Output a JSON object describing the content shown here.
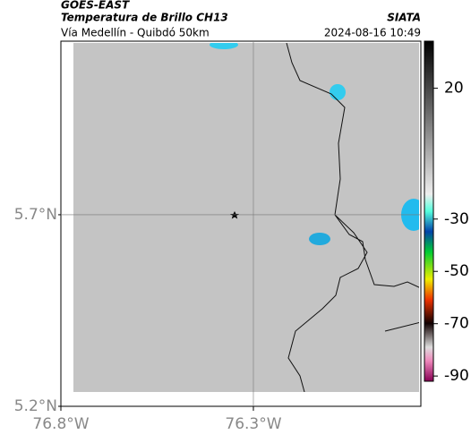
{
  "header": {
    "source": "GOES-EAST",
    "title": "Temperatura de Brillo CH13",
    "subtitle": "Vía Medellín - Quibdó 50km",
    "org": "SIATA",
    "datetime": "2024-08-16 10:49"
  },
  "chart_data": {
    "type": "map",
    "xlim": [
      -76.8,
      -75.865
    ],
    "xticks": [
      {
        "value": -76.8,
        "label": "76.8°W"
      },
      {
        "value": -76.3,
        "label": "76.3°W"
      }
    ],
    "ylim": [
      5.2,
      6.153
    ],
    "yticks": [
      {
        "value": 5.2,
        "label": "5.2°N"
      },
      {
        "value": 5.7,
        "label": "5.7°N"
      }
    ],
    "grid": true,
    "colorbar": {
      "lim": [
        38,
        -92
      ],
      "ticks": [
        20,
        -30,
        -50,
        -70,
        -90
      ]
    }
  }
}
